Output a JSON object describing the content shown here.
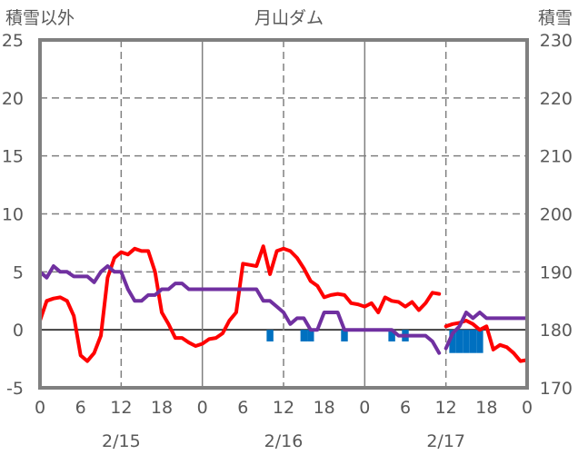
{
  "chart_data": {
    "type": "line",
    "title": "月山ダム",
    "ylabel_left": "積雪以外",
    "ylabel_right": "積雪",
    "y_left": {
      "min": -5,
      "max": 25,
      "ticks": [
        25,
        20,
        15,
        10,
        5,
        0,
        -5
      ]
    },
    "y_right": {
      "min": 170,
      "max": 230,
      "ticks": [
        230,
        220,
        210,
        200,
        190,
        180,
        170
      ]
    },
    "x_axis": {
      "min": 0,
      "max": 72,
      "tick_labels": [
        "0",
        "6",
        "12",
        "18",
        "0",
        "6",
        "12",
        "18",
        "0",
        "6",
        "12",
        "18",
        "0"
      ],
      "date_labels": [
        {
          "label": "2/15",
          "at": 12
        },
        {
          "label": "2/16",
          "at": 36
        },
        {
          "label": "2/17",
          "at": 60
        }
      ],
      "dashed_grid_at": [
        12,
        36,
        60
      ],
      "solid_grid_at": [
        24,
        48
      ]
    },
    "series": [
      {
        "color": "#ff0000",
        "axis": "left",
        "points": [
          [
            0,
            0.8
          ],
          [
            1,
            2.5
          ],
          [
            2,
            2.7
          ],
          [
            3,
            2.8
          ],
          [
            4,
            2.5
          ],
          [
            5,
            1.2
          ],
          [
            6,
            -2.2
          ],
          [
            7,
            -2.7
          ],
          [
            8,
            -2.0
          ],
          [
            9,
            -0.5
          ],
          [
            10,
            4.5
          ],
          [
            11,
            6.2
          ],
          [
            12,
            6.7
          ],
          [
            13,
            6.5
          ],
          [
            14,
            7.0
          ],
          [
            15,
            6.8
          ],
          [
            16,
            6.8
          ],
          [
            17,
            5.0
          ],
          [
            18,
            1.5
          ],
          [
            19,
            0.5
          ],
          [
            20,
            -0.7
          ],
          [
            21,
            -0.7
          ],
          [
            22,
            -1.1
          ],
          [
            23,
            -1.4
          ],
          [
            24,
            -1.2
          ],
          [
            25,
            -0.8
          ],
          [
            26,
            -0.7
          ],
          [
            27,
            -0.3
          ],
          [
            28,
            0.8
          ],
          [
            29,
            1.5
          ],
          [
            30,
            5.7
          ],
          [
            31,
            5.6
          ],
          [
            32,
            5.5
          ],
          [
            33,
            7.2
          ],
          [
            34,
            4.8
          ],
          [
            35,
            6.8
          ],
          [
            36,
            7.0
          ],
          [
            37,
            6.8
          ],
          [
            38,
            6.2
          ],
          [
            39,
            5.3
          ],
          [
            40,
            4.2
          ],
          [
            41,
            3.8
          ],
          [
            42,
            2.8
          ],
          [
            43,
            3.0
          ],
          [
            44,
            3.1
          ],
          [
            45,
            3.0
          ],
          [
            46,
            2.3
          ],
          [
            47,
            2.2
          ],
          [
            48,
            2.0
          ],
          [
            49,
            2.3
          ],
          [
            50,
            1.5
          ],
          [
            51,
            2.8
          ],
          [
            52,
            2.5
          ],
          [
            53,
            2.4
          ],
          [
            54,
            2.0
          ],
          [
            55,
            2.4
          ],
          [
            56,
            1.7
          ],
          [
            57,
            2.3
          ],
          [
            58,
            3.2
          ],
          [
            59,
            3.1
          ],
          null,
          [
            60,
            0.3
          ],
          [
            61,
            0.5
          ],
          [
            62,
            0.6
          ],
          [
            63,
            0.8
          ],
          [
            64,
            0.5
          ],
          [
            65,
            0.0
          ],
          [
            66,
            0.3
          ],
          [
            67,
            -1.7
          ],
          [
            68,
            -1.3
          ],
          [
            69,
            -1.5
          ],
          [
            70,
            -2.0
          ],
          [
            71,
            -2.7
          ],
          [
            72,
            -2.6
          ]
        ]
      },
      {
        "color": "#7030a0",
        "axis": "left",
        "points": [
          [
            0,
            5.0
          ],
          [
            1,
            4.5
          ],
          [
            2,
            5.5
          ],
          [
            3,
            5.0
          ],
          [
            4,
            5.0
          ],
          [
            5,
            4.6
          ],
          [
            6,
            4.6
          ],
          [
            7,
            4.6
          ],
          [
            8,
            4.1
          ],
          [
            9,
            5.0
          ],
          [
            10,
            5.5
          ],
          [
            11,
            5.0
          ],
          [
            12,
            5.0
          ],
          [
            13,
            3.5
          ],
          [
            14,
            2.5
          ],
          [
            15,
            2.5
          ],
          [
            16,
            3.0
          ],
          [
            17,
            3.0
          ],
          [
            18,
            3.5
          ],
          [
            19,
            3.5
          ],
          [
            20,
            4.0
          ],
          [
            21,
            4.0
          ],
          [
            22,
            3.5
          ],
          [
            23,
            3.5
          ],
          [
            24,
            3.5
          ],
          [
            25,
            3.5
          ],
          [
            26,
            3.5
          ],
          [
            27,
            3.5
          ],
          [
            28,
            3.5
          ],
          [
            29,
            3.5
          ],
          [
            30,
            3.5
          ],
          [
            31,
            3.5
          ],
          [
            32,
            3.5
          ],
          [
            33,
            2.5
          ],
          [
            34,
            2.5
          ],
          [
            35,
            2.0
          ],
          [
            36,
            1.5
          ],
          [
            37,
            0.5
          ],
          [
            38,
            1.0
          ],
          [
            39,
            1.0
          ],
          [
            40,
            0.0
          ],
          [
            41,
            0.0
          ],
          [
            42,
            1.5
          ],
          [
            43,
            1.5
          ],
          [
            44,
            1.5
          ],
          [
            45,
            0.0
          ],
          [
            46,
            0.0
          ],
          [
            47,
            0.0
          ],
          [
            48,
            0.0
          ],
          [
            49,
            0.0
          ],
          [
            50,
            0.0
          ],
          [
            51,
            0.0
          ],
          [
            52,
            0.0
          ],
          [
            53,
            -0.5
          ],
          [
            54,
            -0.5
          ],
          [
            55,
            -0.5
          ],
          [
            56,
            -0.5
          ],
          [
            57,
            -0.5
          ],
          [
            58,
            -1.0
          ],
          [
            59,
            -2.0
          ],
          null,
          [
            60,
            -1.6
          ],
          [
            61,
            -0.3
          ],
          [
            62,
            0.3
          ],
          [
            63,
            1.5
          ],
          [
            64,
            1.0
          ],
          [
            65,
            1.5
          ],
          [
            66,
            1.0
          ],
          [
            67,
            1.0
          ],
          [
            68,
            1.0
          ],
          [
            69,
            1.0
          ],
          [
            70,
            1.0
          ],
          [
            71,
            1.0
          ],
          [
            72,
            1.0
          ]
        ]
      }
    ],
    "bars": {
      "color": "#0070c0",
      "axis": "left",
      "width_hours": 1,
      "values": [
        [
          34,
          -1.0
        ],
        [
          39,
          -1.0
        ],
        [
          40,
          -1.0
        ],
        [
          45,
          -1.0
        ],
        [
          52,
          -1.0
        ],
        [
          54,
          -1.0
        ],
        [
          61,
          -2.0
        ],
        [
          62,
          -2.0
        ],
        [
          63,
          -2.0
        ],
        [
          64,
          -2.0
        ],
        [
          65,
          -2.0
        ]
      ]
    }
  }
}
